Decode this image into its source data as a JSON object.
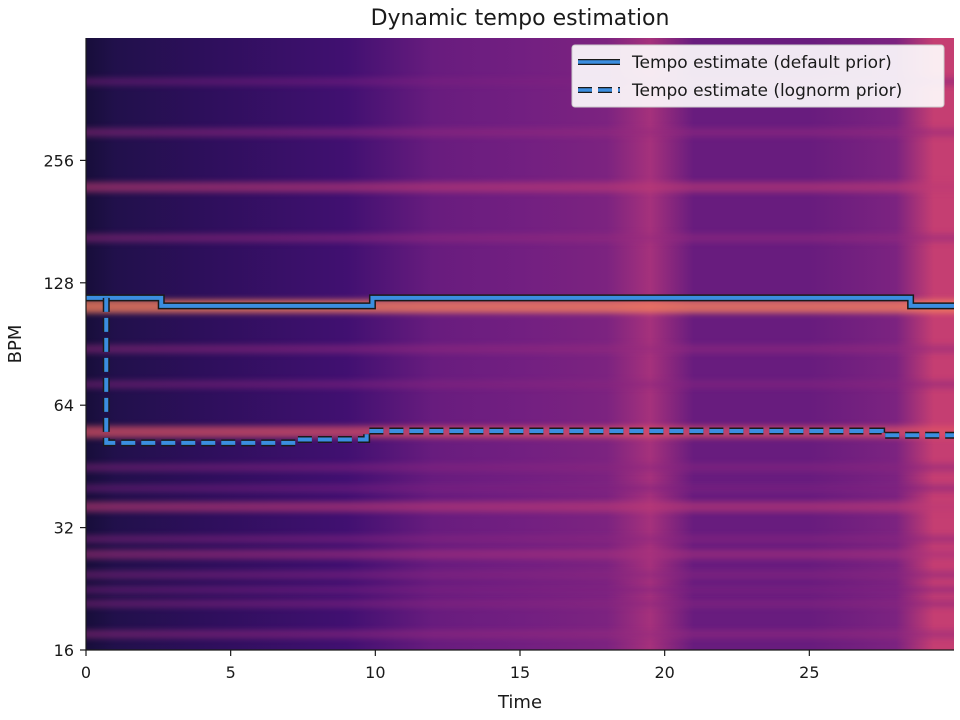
{
  "chart_data": {
    "type": "heatmap",
    "title": "Dynamic tempo estimation",
    "xlabel": "Time",
    "ylabel": "BPM",
    "xlim": [
      0,
      30
    ],
    "ylim": [
      16,
      512
    ],
    "y_scale": "log2",
    "x_ticks": [
      0,
      5,
      10,
      15,
      20,
      25
    ],
    "y_ticks": [
      16,
      32,
      64,
      128,
      256
    ],
    "colormap": "magma",
    "grid": false,
    "legend_position": "top-right",
    "legend": [
      {
        "label": "Tempo estimate (default prior)",
        "style": "solid"
      },
      {
        "label": "Tempo estimate (lognorm prior)",
        "style": "dashed"
      }
    ],
    "series": [
      {
        "name": "Tempo estimate (default prior)",
        "style": "solid",
        "color": "#3b8ee0",
        "points": [
          [
            0,
            117.5
          ],
          [
            2.6,
            117.5
          ],
          [
            2.6,
            112.3
          ],
          [
            9.9,
            112.3
          ],
          [
            9.9,
            117.5
          ],
          [
            28.5,
            117.5
          ],
          [
            28.5,
            112.3
          ],
          [
            30,
            112.3
          ]
        ]
      },
      {
        "name": "Tempo estimate (lognorm prior)",
        "style": "dashed",
        "color": "#3b8ee0",
        "points": [
          [
            0.7,
            117.5
          ],
          [
            0.7,
            51.7
          ],
          [
            7.3,
            51.7
          ],
          [
            7.3,
            52.7
          ],
          [
            9.7,
            52.7
          ],
          [
            9.7,
            55.3
          ],
          [
            27.5,
            55.3
          ],
          [
            27.5,
            54.0
          ],
          [
            30,
            54.0
          ]
        ]
      }
    ],
    "heatmap_bands": [
      {
        "bpm": 17.5,
        "intensity": 0.35
      },
      {
        "bpm": 20.8,
        "intensity": 0.3
      },
      {
        "bpm": 22.5,
        "intensity": 0.25
      },
      {
        "bpm": 24.5,
        "intensity": 0.3
      },
      {
        "bpm": 27.5,
        "intensity": 0.45
      },
      {
        "bpm": 30.0,
        "intensity": 0.3
      },
      {
        "bpm": 36.0,
        "intensity": 0.55
      },
      {
        "bpm": 40.0,
        "intensity": 0.25
      },
      {
        "bpm": 45.0,
        "intensity": 0.3
      },
      {
        "bpm": 55.0,
        "intensity": 0.75
      },
      {
        "bpm": 72.0,
        "intensity": 0.3
      },
      {
        "bpm": 88.0,
        "intensity": 0.35
      },
      {
        "bpm": 112.0,
        "intensity": 0.95
      },
      {
        "bpm": 165.0,
        "intensity": 0.35
      },
      {
        "bpm": 220.0,
        "intensity": 0.55
      },
      {
        "bpm": 300.0,
        "intensity": 0.35
      },
      {
        "bpm": 400.0,
        "intensity": 0.25
      }
    ],
    "heatmap_time_profile": [
      {
        "t": 0,
        "level": 0.0
      },
      {
        "t": 1,
        "level": 0.1
      },
      {
        "t": 4,
        "level": 0.2
      },
      {
        "t": 9,
        "level": 0.35
      },
      {
        "t": 12,
        "level": 0.55
      },
      {
        "t": 15,
        "level": 0.6
      },
      {
        "t": 18,
        "level": 0.65
      },
      {
        "t": 19.5,
        "level": 0.85
      },
      {
        "t": 21,
        "level": 0.55
      },
      {
        "t": 25,
        "level": 0.55
      },
      {
        "t": 28,
        "level": 0.65
      },
      {
        "t": 29.3,
        "level": 1.0
      },
      {
        "t": 30,
        "level": 1.0
      }
    ]
  }
}
